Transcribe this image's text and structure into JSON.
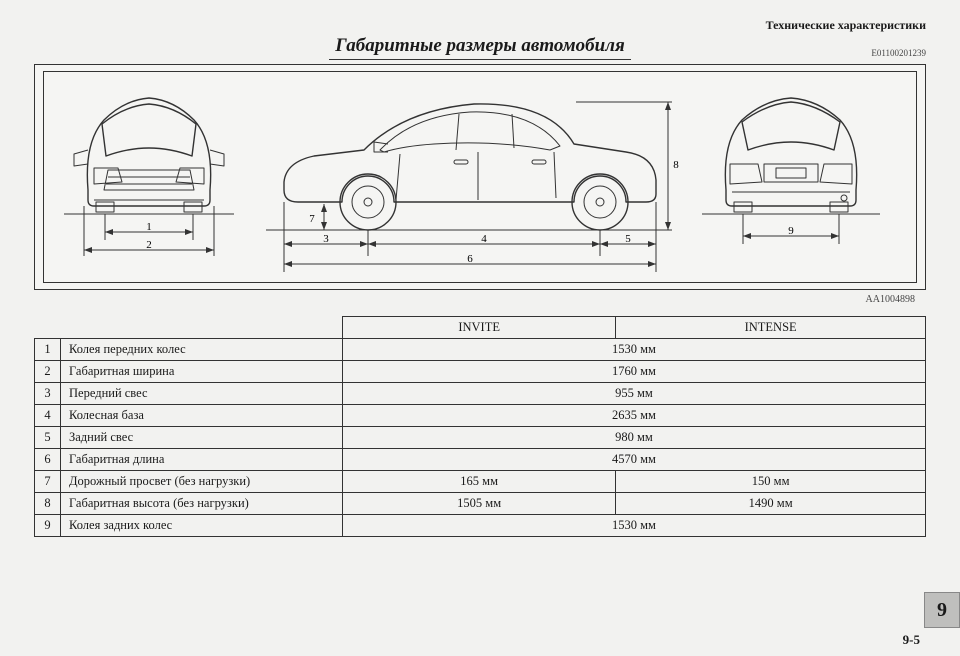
{
  "header": "Технические характеристики",
  "title": "Габаритные размеры автомобиля",
  "doc_code": "E01100201239",
  "diagram_code": "AA1004898",
  "page_tab": "9",
  "page_number": "9-5",
  "dim_labels": [
    "1",
    "2",
    "3",
    "4",
    "5",
    "6",
    "7",
    "8",
    "9"
  ],
  "table": {
    "columns": [
      "INVITE",
      "INTENSE"
    ],
    "rows": [
      {
        "n": "1",
        "name": "Колея передних колес",
        "span": true,
        "v": "1530 мм"
      },
      {
        "n": "2",
        "name": "Габаритная ширина",
        "span": true,
        "v": "1760 мм"
      },
      {
        "n": "3",
        "name": "Передний свес",
        "span": true,
        "v": "955 мм"
      },
      {
        "n": "4",
        "name": "Колесная база",
        "span": true,
        "v": "2635 мм"
      },
      {
        "n": "5",
        "name": "Задний свес",
        "span": true,
        "v": "980 мм"
      },
      {
        "n": "6",
        "name": "Габаритная длина",
        "span": true,
        "v": "4570 мм"
      },
      {
        "n": "7",
        "name": "Дорожный просвет (без нагрузки)",
        "span": false,
        "v1": "165 мм",
        "v2": "150 мм"
      },
      {
        "n": "8",
        "name": "Габаритная высота (без нагрузки)",
        "span": false,
        "v1": "1505 мм",
        "v2": "1490 мм"
      },
      {
        "n": "9",
        "name": "Колея задних колес",
        "span": true,
        "v": "1530 мм"
      }
    ]
  }
}
